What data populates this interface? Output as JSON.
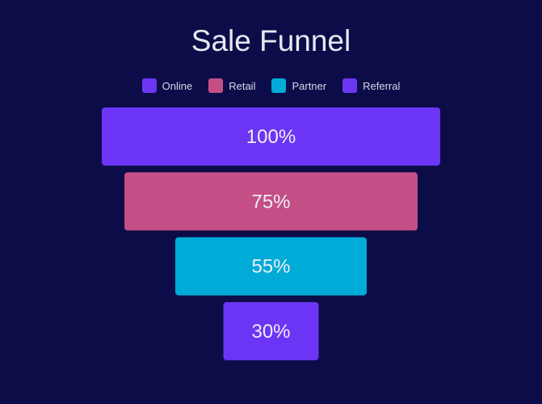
{
  "chart_data": {
    "type": "funnel",
    "title": "Sale Funnel",
    "categories": [
      "Online",
      "Retail",
      "Partner",
      "Referral"
    ],
    "values": [
      100,
      75,
      55,
      30
    ],
    "labels": [
      "100%",
      "75%",
      "55%",
      "30%"
    ],
    "colors": [
      "#6c35f5",
      "#c44f86",
      "#00abd8",
      "#6c35f5"
    ],
    "legend_position": "top"
  }
}
